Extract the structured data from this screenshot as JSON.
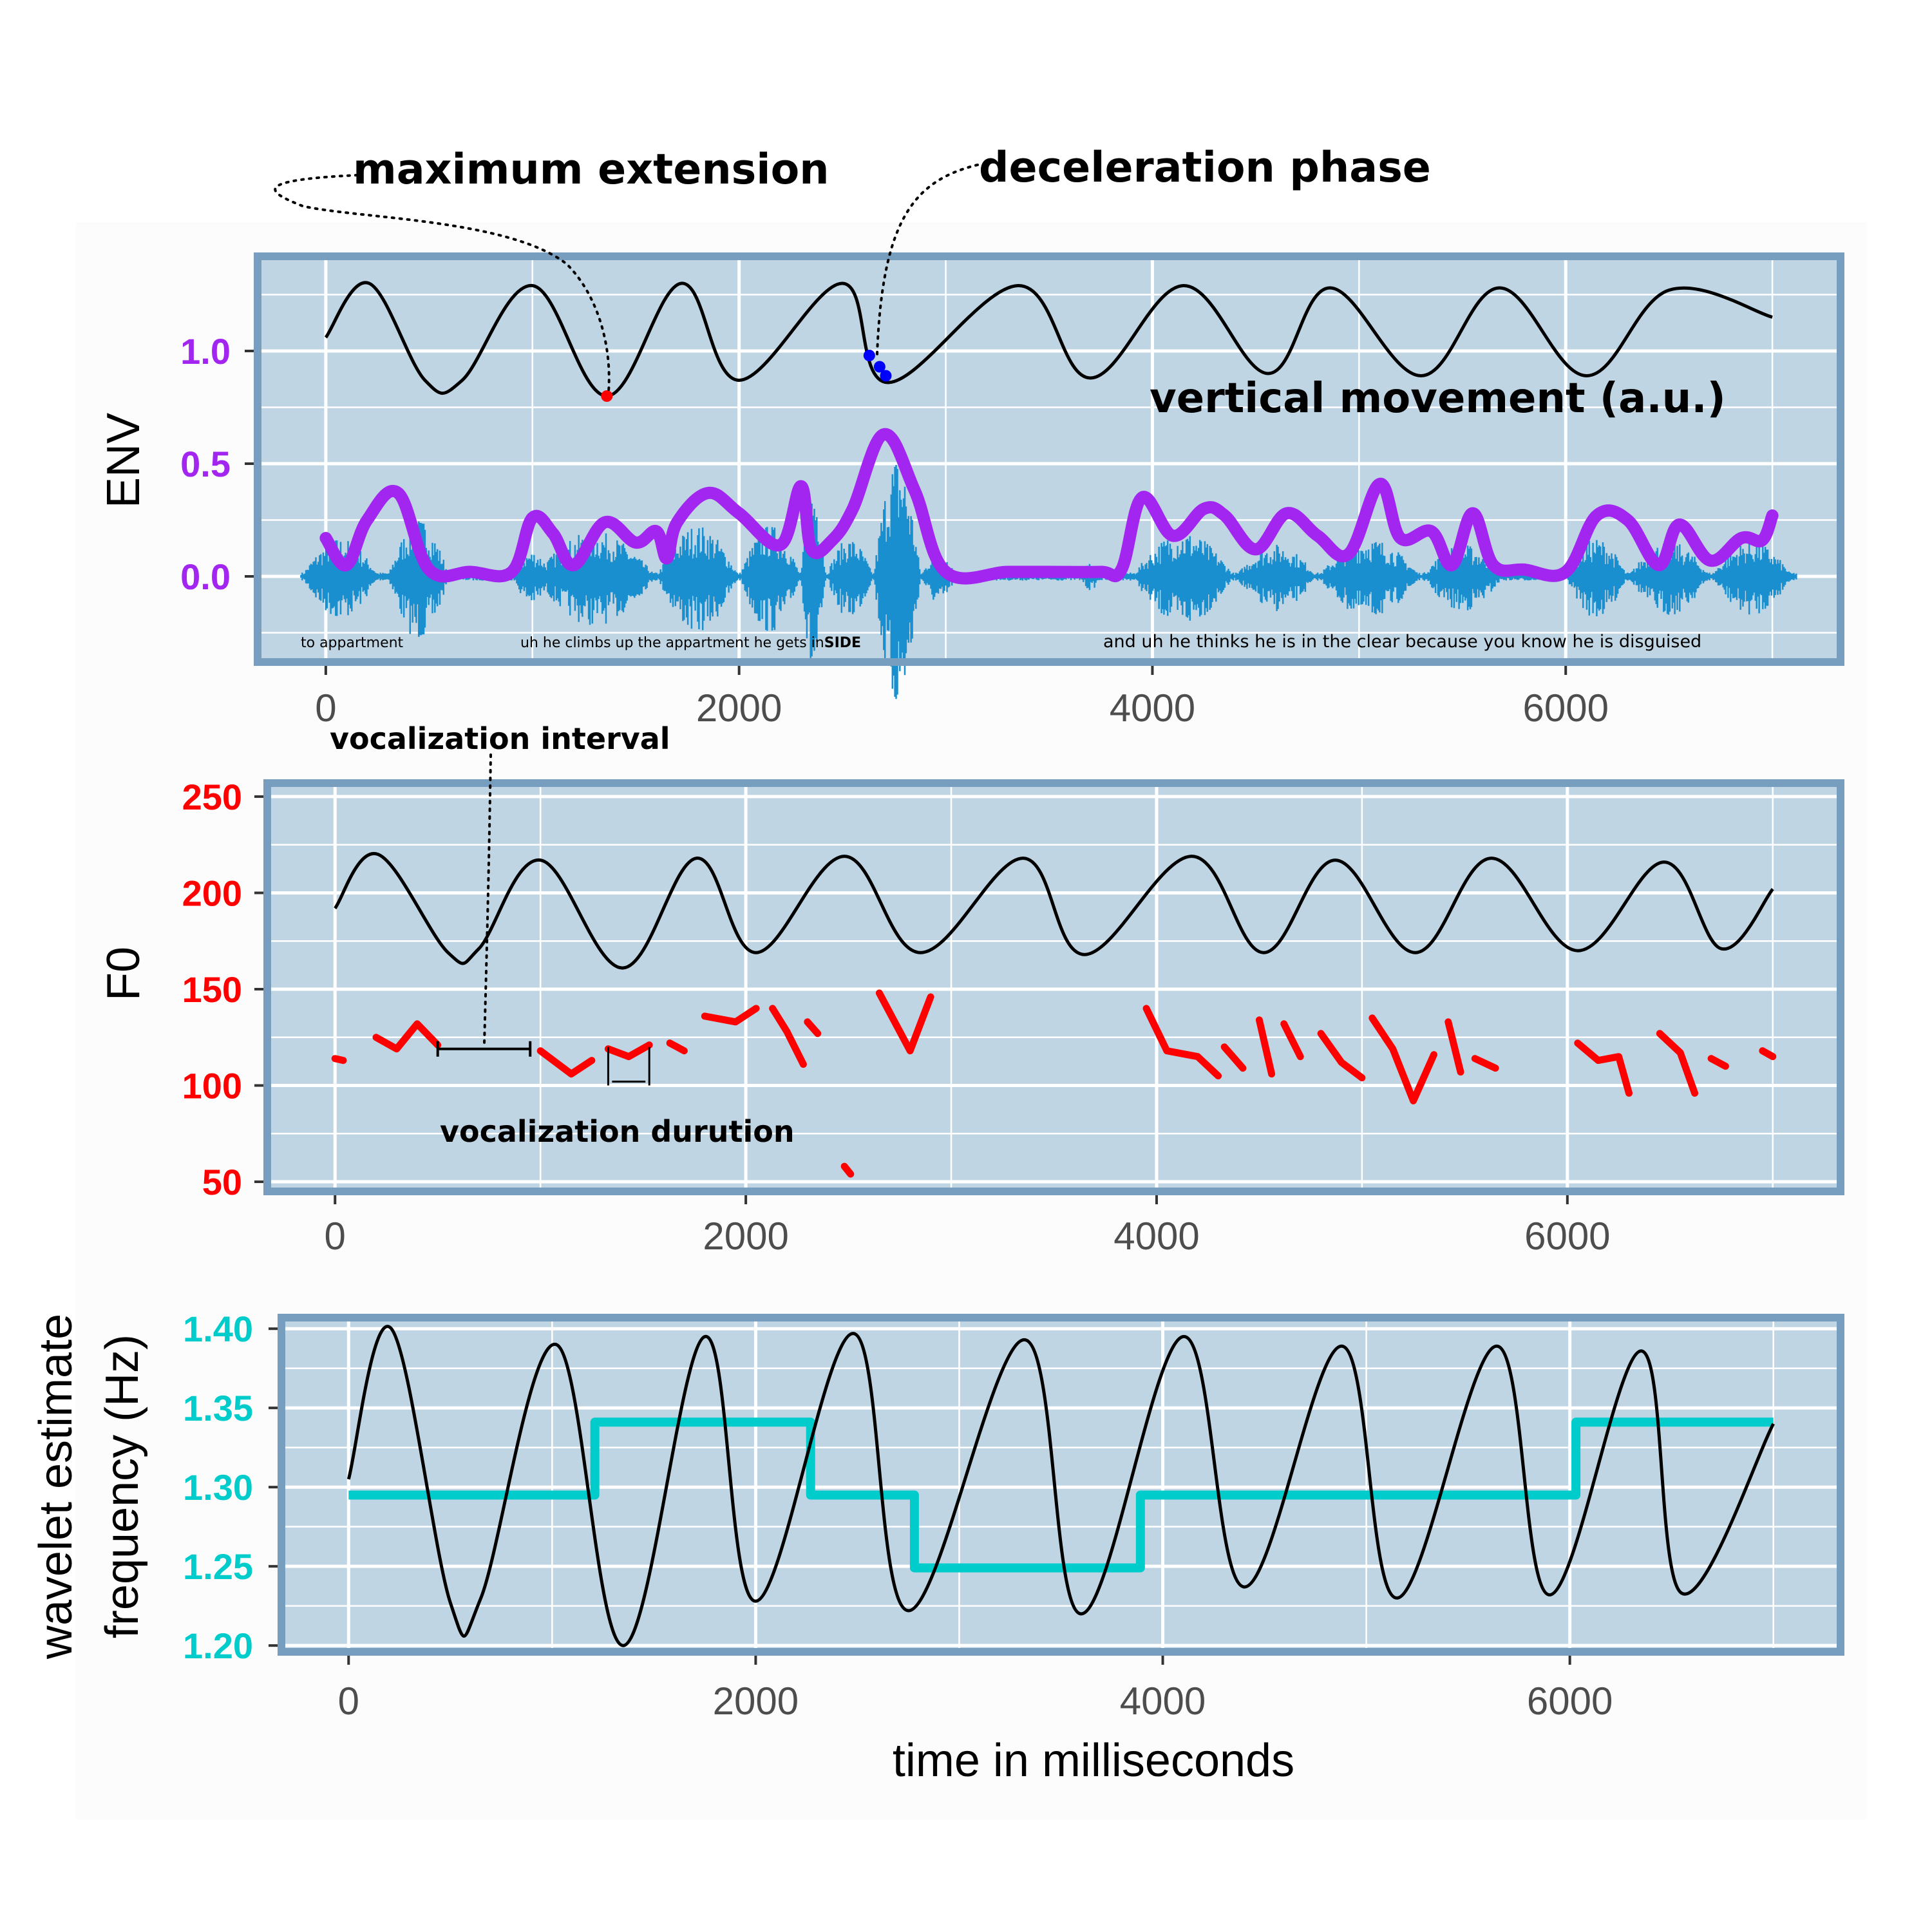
{
  "annotations": {
    "max_extension": "maximum extension",
    "deceleration": "deceleration phase",
    "vertical_movement": "vertical movement (a.u.)",
    "voc_interval": "vocalization interval",
    "voc_duration": "vocalization durution"
  },
  "transcript": {
    "w1": "to appartment",
    "w2": "uh he climbs up the appartment he gets in",
    "w2_emph": "SIDE",
    "w3": "and uh he thinks he is in the clear because you know he is disguised"
  },
  "colors": {
    "panel_bg": "#c0d5e3",
    "panel_border": "#779ebf",
    "grid": "#ffffff",
    "movement": "#000000",
    "envelope": "#a226f0",
    "waveform": "#1a8fcf",
    "f0": "#ff0000",
    "wavelet": "#00cccc",
    "max_point": "#ff0000",
    "decel_points": "#0000ff"
  },
  "chart_data": [
    {
      "type": "line",
      "id": "env",
      "ylabel": "ENV",
      "ylabel_color": "#a226f0",
      "x_ticks": [
        "0",
        "2000",
        "4000",
        "6000"
      ],
      "x_tick_values": [
        0,
        2000,
        4000,
        6000
      ],
      "y_ticks": [
        "1.0",
        "0.5",
        "0.0"
      ],
      "y_tick_values": [
        1.0,
        0.5,
        0.0
      ],
      "xlim": [
        -330,
        7330
      ],
      "ylim": [
        -0.38,
        1.42
      ],
      "grid": true,
      "series": [
        {
          "kind": "movement",
          "x": [
            0,
            210,
            480,
            660,
            1000,
            1360,
            1720,
            2000,
            2500,
            2720,
            3350,
            3700,
            4150,
            4560,
            4860,
            5300,
            5680,
            6100,
            6500,
            7000
          ],
          "values": [
            1.06,
            1.3,
            0.87,
            0.87,
            1.29,
            0.8,
            1.3,
            0.87,
            1.3,
            0.86,
            1.29,
            0.88,
            1.29,
            0.9,
            1.28,
            0.89,
            1.28,
            0.89,
            1.27,
            1.15
          ]
        },
        {
          "kind": "envelope",
          "x": [
            0,
            100,
            200,
            350,
            500,
            700,
            900,
            1000,
            1100,
            1200,
            1350,
            1500,
            1600,
            1650,
            1700,
            1850,
            2000,
            2200,
            2300,
            2350,
            2450,
            2550,
            2700,
            2850,
            3000,
            3300,
            3500,
            3750,
            3850,
            3950,
            4100,
            4250,
            4350,
            4500,
            4650,
            4800,
            4950,
            5100,
            5200,
            5350,
            5450,
            5550,
            5650,
            5800,
            6000,
            6150,
            6300,
            6450,
            6550,
            6700,
            6850,
            6950,
            7000
          ],
          "values": [
            0.17,
            0.05,
            0.25,
            0.37,
            0.03,
            0.02,
            0.02,
            0.26,
            0.19,
            0.05,
            0.24,
            0.15,
            0.2,
            0.08,
            0.24,
            0.37,
            0.28,
            0.14,
            0.4,
            0.12,
            0.16,
            0.3,
            0.63,
            0.38,
            0.02,
            0.02,
            0.02,
            0.02,
            0.03,
            0.35,
            0.18,
            0.3,
            0.27,
            0.12,
            0.28,
            0.18,
            0.1,
            0.41,
            0.17,
            0.2,
            0.05,
            0.28,
            0.05,
            0.03,
            0.02,
            0.27,
            0.25,
            0.05,
            0.23,
            0.07,
            0.17,
            0.16,
            0.27
          ]
        }
      ],
      "max_extension_point": {
        "x": 1360,
        "y": 0.8
      },
      "deceleration_points": [
        {
          "x": 2630,
          "y": 0.98
        },
        {
          "x": 2680,
          "y": 0.93
        },
        {
          "x": 2710,
          "y": 0.89
        }
      ]
    },
    {
      "type": "line",
      "id": "f0",
      "ylabel": "F0",
      "ylabel_color": "#ff0000",
      "x_ticks": [
        "0",
        "2000",
        "4000",
        "6000"
      ],
      "x_tick_values": [
        0,
        2000,
        4000,
        6000
      ],
      "y_ticks": [
        "250",
        "200",
        "150",
        "100",
        "50"
      ],
      "y_tick_values": [
        250,
        200,
        150,
        100,
        50
      ],
      "xlim": [
        -330,
        7330
      ],
      "ylim": [
        45,
        257
      ],
      "grid": true,
      "series": [
        {
          "kind": "movement",
          "x": [
            0,
            210,
            550,
            700,
            1000,
            1400,
            1760,
            2050,
            2480,
            2850,
            3350,
            3650,
            4170,
            4520,
            4870,
            5260,
            5630,
            6050,
            6470,
            6750,
            7000
          ],
          "values": [
            192,
            220,
            169,
            171,
            217,
            161,
            218,
            169,
            219,
            169,
            218,
            168,
            219,
            169,
            217,
            169,
            218,
            170,
            216,
            171,
            202
          ]
        },
        {
          "kind": "f0",
          "segments": [
            {
              "x": [
                0,
                40
              ],
              "values": [
                114,
                113
              ]
            },
            {
              "x": [
                200,
                300,
                400,
                500
              ],
              "values": [
                125,
                119,
                132,
                121
              ]
            },
            {
              "x": [
                1000,
                1150,
                1250
              ],
              "values": [
                118,
                106,
                113
              ]
            },
            {
              "x": [
                1330,
                1430,
                1530
              ],
              "values": [
                119,
                115,
                121
              ]
            },
            {
              "x": [
                1630,
                1700
              ],
              "values": [
                122,
                118
              ]
            },
            {
              "x": [
                1800,
                1950,
                2050
              ],
              "values": [
                136,
                133,
                140
              ]
            },
            {
              "x": [
                2130,
                2200,
                2280
              ],
              "values": [
                140,
                128,
                111
              ]
            },
            {
              "x": [
                2300,
                2350
              ],
              "values": [
                133,
                127
              ]
            },
            {
              "x": [
                2480,
                2510
              ],
              "values": [
                58,
                54
              ]
            },
            {
              "x": [
                2650,
                2800,
                2900
              ],
              "values": [
                148,
                118,
                146
              ]
            },
            {
              "x": [
                3950,
                4050,
                4200,
                4300
              ],
              "values": [
                140,
                118,
                115,
                105
              ]
            },
            {
              "x": [
                4330,
                4420
              ],
              "values": [
                120,
                109
              ]
            },
            {
              "x": [
                4500,
                4560
              ],
              "values": [
                134,
                106
              ]
            },
            {
              "x": [
                4620,
                4700
              ],
              "values": [
                132,
                115
              ]
            },
            {
              "x": [
                4800,
                4900,
                5000
              ],
              "values": [
                127,
                112,
                104
              ]
            },
            {
              "x": [
                5050,
                5150,
                5250,
                5350
              ],
              "values": [
                135,
                119,
                92,
                116
              ]
            },
            {
              "x": [
                5420,
                5480
              ],
              "values": [
                133,
                107
              ]
            },
            {
              "x": [
                5550,
                5650
              ],
              "values": [
                114,
                109
              ]
            },
            {
              "x": [
                6050,
                6150,
                6250,
                6300
              ],
              "values": [
                122,
                113,
                115,
                96
              ]
            },
            {
              "x": [
                6450,
                6550,
                6620
              ],
              "values": [
                127,
                117,
                96
              ]
            },
            {
              "x": [
                6700,
                6770
              ],
              "values": [
                114,
                110
              ]
            },
            {
              "x": [
                6950,
                7000
              ],
              "values": [
                118,
                115
              ]
            }
          ]
        }
      ],
      "interval_bracket": {
        "x1": 500,
        "x2": 950,
        "y": 119
      },
      "duration_bracket": {
        "x1": 1330,
        "x2": 1530,
        "y_top": 120,
        "y_bottom": 100
      }
    },
    {
      "type": "line",
      "id": "wavelet",
      "ylabel": "wavelet estimate frequency (Hz)",
      "ylabel_line1": "wavelet estimate",
      "ylabel_line2": "frequency (Hz)",
      "ylabel_color": "#00cccc",
      "xlabel": "time in milliseconds",
      "x_ticks": [
        "0",
        "2000",
        "4000",
        "6000"
      ],
      "x_tick_values": [
        0,
        2000,
        4000,
        6000
      ],
      "y_ticks": [
        "1.40",
        "1.35",
        "1.30",
        "1.25",
        "1.20"
      ],
      "y_tick_values": [
        1.4,
        1.35,
        1.3,
        1.25,
        1.2
      ],
      "xlim": [
        -330,
        7330
      ],
      "ylim": [
        1.196,
        1.407
      ],
      "grid": true,
      "series": [
        {
          "kind": "movement",
          "x": [
            0,
            210,
            500,
            650,
            1020,
            1350,
            1750,
            2000,
            2480,
            2750,
            3320,
            3600,
            4100,
            4400,
            4880,
            5150,
            5640,
            5900,
            6350,
            6550,
            7000
          ],
          "values": [
            1.305,
            1.4,
            1.227,
            1.23,
            1.39,
            1.2,
            1.395,
            1.228,
            1.397,
            1.222,
            1.393,
            1.22,
            1.395,
            1.237,
            1.389,
            1.23,
            1.389,
            1.232,
            1.386,
            1.233,
            1.34
          ]
        },
        {
          "kind": "wavelet",
          "step": true,
          "x": [
            0,
            1210,
            1210,
            2270,
            2270,
            2780,
            2780,
            3890,
            3890,
            6030,
            6030,
            7000
          ],
          "values": [
            1.295,
            1.295,
            1.341,
            1.341,
            1.295,
            1.295,
            1.249,
            1.249,
            1.295,
            1.295,
            1.341,
            1.341
          ]
        }
      ]
    }
  ]
}
